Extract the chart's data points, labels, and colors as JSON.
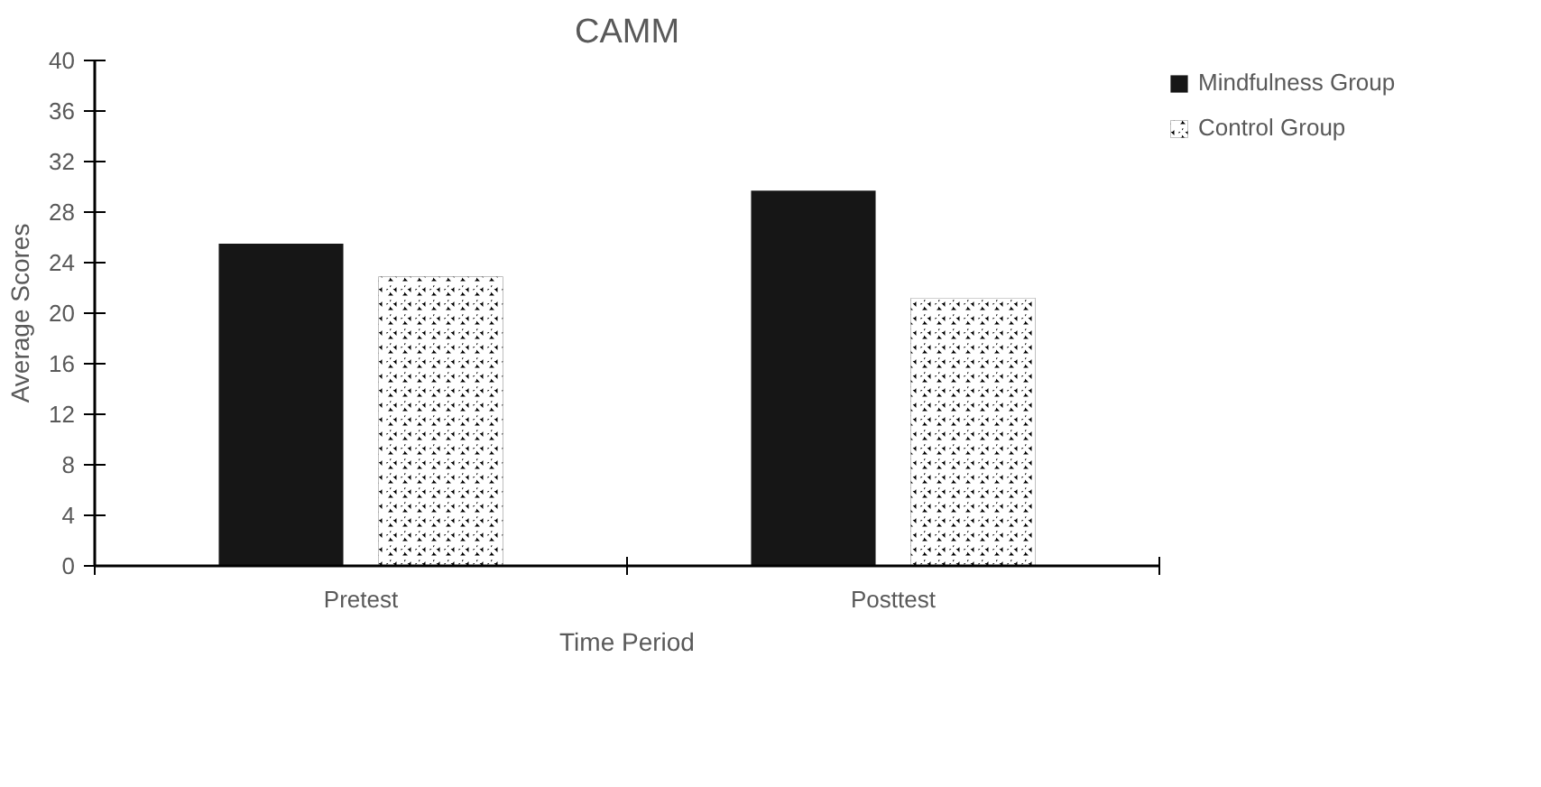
{
  "chart_data": {
    "type": "bar",
    "title": "CAMM",
    "xlabel": "Time Period",
    "ylabel": "Average Scores",
    "categories": [
      "Pretest",
      "Posttest"
    ],
    "series": [
      {
        "name": "Mindfulness Group",
        "color": "#161616",
        "values": [
          25.5,
          29.7
        ]
      },
      {
        "name": "Control Group",
        "color": "#000000",
        "values": [
          22.9,
          21.2
        ]
      }
    ],
    "ylim": [
      0,
      40
    ],
    "yticks": [
      0,
      4,
      8,
      12,
      16,
      20,
      24,
      28,
      32,
      36,
      40
    ],
    "grid": false,
    "legend": "right"
  }
}
